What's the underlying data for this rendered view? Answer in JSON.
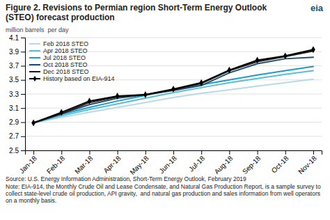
{
  "chart_data": {
    "type": "line",
    "title": "Figure 2. Revisions to Permian region Short-Term Energy Outlook (STEO) forecast production",
    "y_label": "million barrels  per day",
    "annotations": [
      "eia",
      "Source: U.S. Energy Information Administration, Short-Term Energy Outlook, February 2019",
      "Note: EIA-914, the Monthly Crude Oil and Lease Condensate, and Natural Gas Production Report, is a sample survey to collect state-level crude oil production, API gravity,  and natural gas production and sales information from well operators on a monthly basis."
    ],
    "categories": [
      "Jan-18",
      "Feb-18",
      "Mar-18",
      "Apr-18",
      "May-18",
      "Jun-18",
      "Jul-18",
      "Aug-18",
      "Sep-18",
      "Oct-18",
      "Nov-18"
    ],
    "series": [
      {
        "name": "Feb 2018 STEO",
        "color": "#b8d9e8",
        "values": [
          2.89,
          2.97,
          3.04,
          3.11,
          3.18,
          3.25,
          3.31,
          3.36,
          3.41,
          3.46,
          3.51
        ]
      },
      {
        "name": "Apr 2018 STEO",
        "color": "#5bbcd6",
        "values": [
          2.89,
          2.99,
          3.08,
          3.16,
          3.24,
          3.32,
          3.39,
          3.46,
          3.52,
          3.58,
          3.63
        ]
      },
      {
        "name": "Jul 2018 STEO",
        "color": "#1a9dc8",
        "values": [
          2.89,
          3.01,
          3.11,
          3.2,
          3.28,
          3.36,
          3.43,
          3.5,
          3.57,
          3.63,
          3.69
        ]
      },
      {
        "name": "Oct 2018 STEO",
        "color": "#1e4d6b",
        "values": [
          2.89,
          3.02,
          3.15,
          3.24,
          3.29,
          3.35,
          3.42,
          3.6,
          3.73,
          3.8,
          3.82
        ]
      },
      {
        "name": "Dec 2018 STEO",
        "color": "#1a1a1a",
        "values": [
          2.89,
          3.02,
          3.18,
          3.26,
          3.29,
          3.36,
          3.45,
          3.63,
          3.76,
          3.83,
          3.91
        ]
      },
      {
        "name": "History based on EIA-914",
        "color": "#000000",
        "marker": "diamond",
        "values": [
          2.89,
          3.04,
          3.2,
          3.27,
          3.29,
          3.37,
          3.46,
          3.64,
          3.78,
          3.84,
          3.93
        ]
      }
    ],
    "ylim": [
      2.5,
      4.1
    ],
    "yticks": [
      2.5,
      2.7,
      2.9,
      3.1,
      3.3,
      3.5,
      3.7,
      3.9,
      4.1
    ],
    "grid": true,
    "legend": "upper left"
  }
}
